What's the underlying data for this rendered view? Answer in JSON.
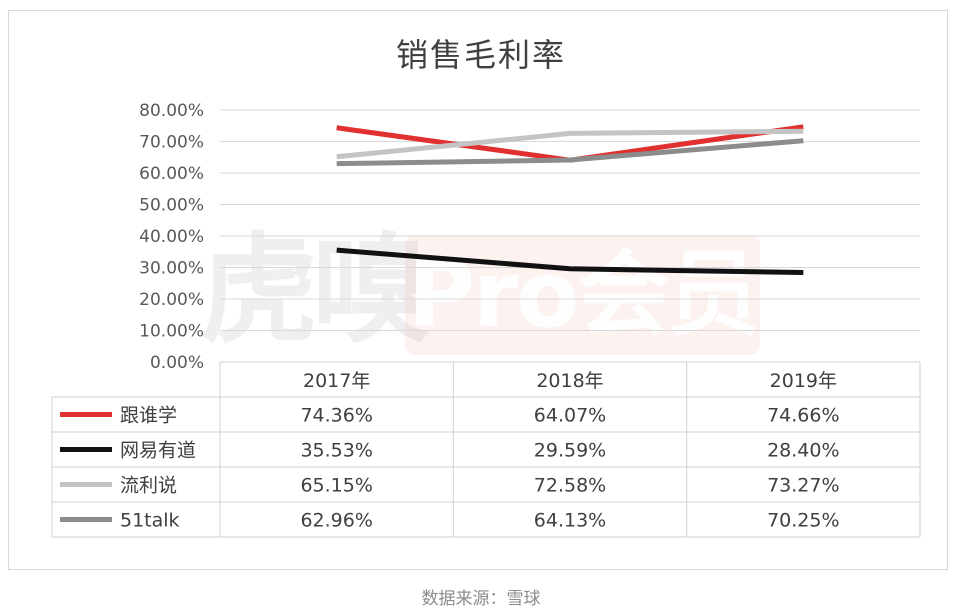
{
  "chart_data": {
    "type": "line",
    "title": "销售毛利率",
    "categories": [
      "2017年",
      "2018年",
      "2019年"
    ],
    "y_ticks": [
      "0.00%",
      "10.00%",
      "20.00%",
      "30.00%",
      "40.00%",
      "50.00%",
      "60.00%",
      "70.00%",
      "80.00%"
    ],
    "ylim": [
      0,
      80
    ],
    "grid": true,
    "legend": "data-table",
    "series": [
      {
        "name": "跟谁学",
        "color": "#e03030",
        "values": [
          74.36,
          64.07,
          74.66
        ],
        "labels": [
          "74.36%",
          "64.07%",
          "74.66%"
        ]
      },
      {
        "name": "网易有道",
        "color": "#111111",
        "values": [
          35.53,
          29.59,
          28.4
        ],
        "labels": [
          "35.53%",
          "29.59%",
          "28.40%"
        ]
      },
      {
        "name": "流利说",
        "color": "#c4c4c4",
        "values": [
          65.15,
          72.58,
          73.27
        ],
        "labels": [
          "65.15%",
          "72.58%",
          "73.27%"
        ]
      },
      {
        "name": "51talk",
        "color": "#8c8c8c",
        "values": [
          62.96,
          64.13,
          70.25
        ],
        "labels": [
          "62.96%",
          "64.13%",
          "70.25%"
        ]
      }
    ]
  },
  "watermark": {
    "brand": "虎嗅",
    "badge": "Pro会员"
  },
  "source": "数据来源：雪球"
}
